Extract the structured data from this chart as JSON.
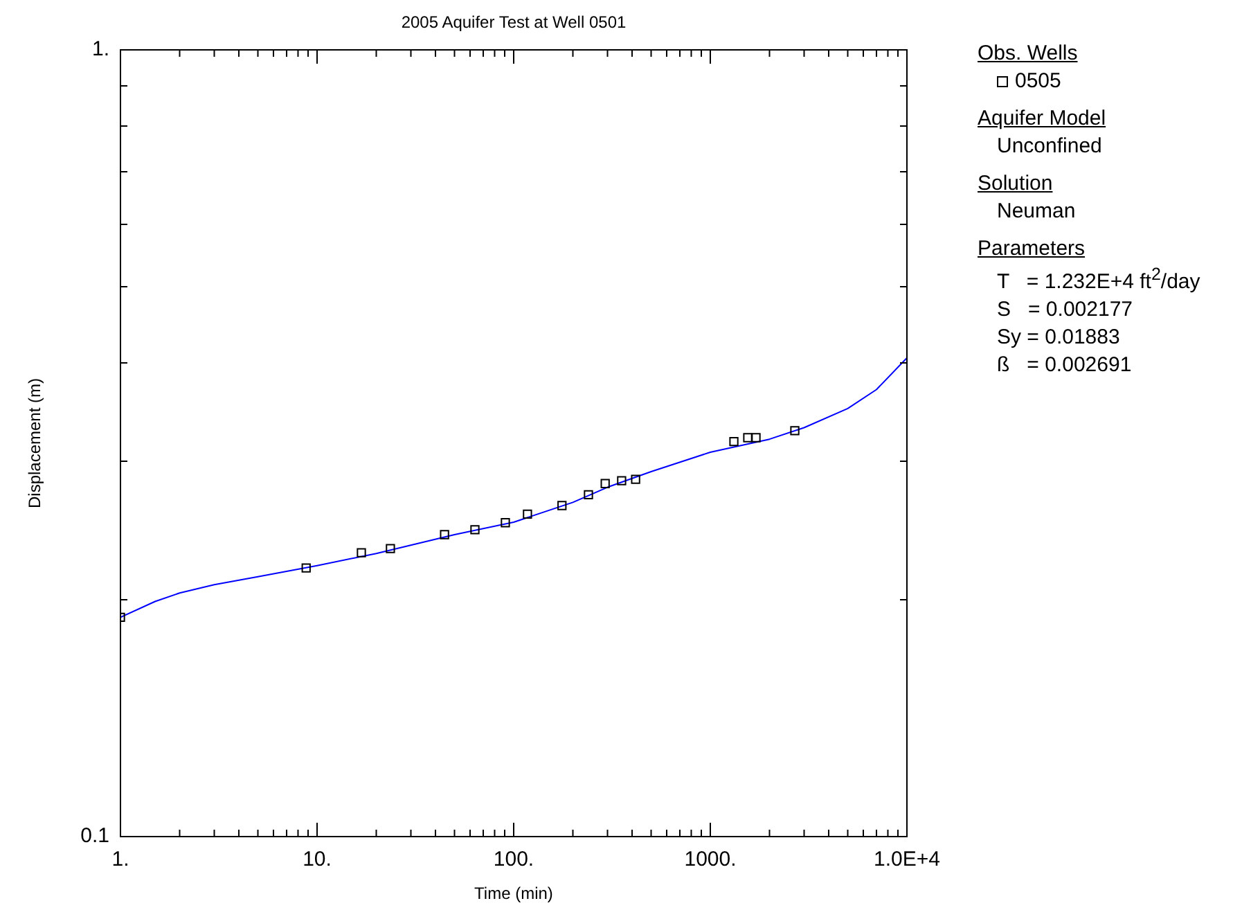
{
  "chart_data": {
    "type": "scatter",
    "title": "2005 Aquifer Test at Well 0501",
    "xlabel": "Time (min)",
    "ylabel": "Displacement (m)",
    "log": "xy",
    "grid": false,
    "legend": "right",
    "legend_title": "Obs. Wells",
    "marker": "square",
    "xlim": [
      1,
      10000
    ],
    "ylim": [
      0.1,
      1
    ],
    "xticks": [
      {
        "value": 1,
        "label": "1."
      },
      {
        "value": 2,
        "label": null
      },
      {
        "value": 3,
        "label": null
      },
      {
        "value": 4,
        "label": null
      },
      {
        "value": 5,
        "label": null
      },
      {
        "value": 6,
        "label": null
      },
      {
        "value": 7,
        "label": null
      },
      {
        "value": 8,
        "label": null
      },
      {
        "value": 9,
        "label": null
      },
      {
        "value": 10,
        "label": "10."
      },
      {
        "value": 20,
        "label": null
      },
      {
        "value": 30,
        "label": null
      },
      {
        "value": 40,
        "label": null
      },
      {
        "value": 50,
        "label": null
      },
      {
        "value": 60,
        "label": null
      },
      {
        "value": 70,
        "label": null
      },
      {
        "value": 80,
        "label": null
      },
      {
        "value": 90,
        "label": null
      },
      {
        "value": 100,
        "label": "100."
      },
      {
        "value": 200,
        "label": null
      },
      {
        "value": 300,
        "label": null
      },
      {
        "value": 400,
        "label": null
      },
      {
        "value": 500,
        "label": null
      },
      {
        "value": 600,
        "label": null
      },
      {
        "value": 700,
        "label": null
      },
      {
        "value": 800,
        "label": null
      },
      {
        "value": 900,
        "label": null
      },
      {
        "value": 1000,
        "label": "1000."
      },
      {
        "value": 2000,
        "label": null
      },
      {
        "value": 3000,
        "label": null
      },
      {
        "value": 4000,
        "label": null
      },
      {
        "value": 5000,
        "label": null
      },
      {
        "value": 6000,
        "label": null
      },
      {
        "value": 7000,
        "label": null
      },
      {
        "value": 8000,
        "label": null
      },
      {
        "value": 9000,
        "label": null
      },
      {
        "value": 10000,
        "label": "1.0E+4"
      }
    ],
    "yticks": [
      0.1,
      {
        "value": 0.2,
        "label": null
      },
      {
        "value": 0.3,
        "label": null
      },
      {
        "value": 0.4,
        "label": null
      },
      {
        "value": 0.5,
        "label": null
      },
      {
        "value": 0.6,
        "label": null
      },
      {
        "value": 0.7,
        "label": null
      },
      {
        "value": 0.8,
        "label": null
      },
      {
        "value": 0.9,
        "label": null
      },
      {
        "value": 1,
        "label": "1."
      }
    ],
    "series": [
      {
        "name": "0505",
        "color": "#000000",
        "x": [
          1,
          8.8,
          16.8,
          23.6,
          44.5,
          63.5,
          90.7,
          117.5,
          176,
          240,
          292,
          354,
          417,
          1318,
          1550,
          1708,
          2690
        ],
        "values": [
          0.19,
          0.2195,
          0.2295,
          0.2323,
          0.242,
          0.2455,
          0.2506,
          0.257,
          0.2635,
          0.272,
          0.281,
          0.2834,
          0.2845,
          0.3177,
          0.3214,
          0.3214,
          0.328
        ]
      },
      {
        "type": "line",
        "color": "#0000ff",
        "marker": "none",
        "x": [
          1,
          1.5,
          2,
          3,
          5,
          10,
          20,
          50,
          100,
          200,
          300,
          500,
          1000,
          2000,
          3000,
          5000,
          7000,
          10000
        ],
        "values": [
          0.19,
          0.199,
          0.204,
          0.209,
          0.214,
          0.221,
          0.229,
          0.242,
          0.251,
          0.266,
          0.278,
          0.291,
          0.308,
          0.32,
          0.331,
          0.35,
          0.37,
          0.406
        ]
      }
    ],
    "annotations": [
      "Aquifer Model",
      "Unconfined",
      "Solution",
      "Neuman",
      "Parameters",
      "T   = 1.232E+4 ft$^{2}$/day",
      "S   = 0.002177",
      "Sy = 0.01883",
      "ß   = 0.002691"
    ]
  }
}
